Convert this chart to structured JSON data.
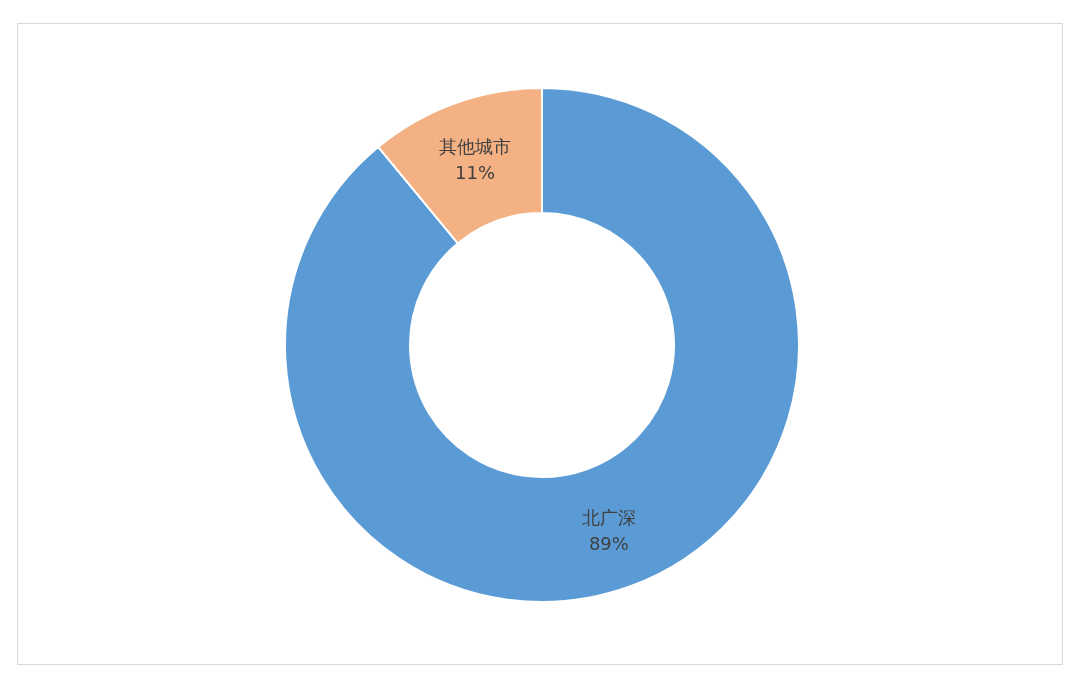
{
  "chart_data": {
    "type": "donut",
    "categories": [
      "北广深",
      "其他城市"
    ],
    "values": [
      89,
      11
    ],
    "colors": [
      "#5b9bd5",
      "#f4b183"
    ],
    "value_labels": [
      "89%",
      "11%"
    ]
  }
}
